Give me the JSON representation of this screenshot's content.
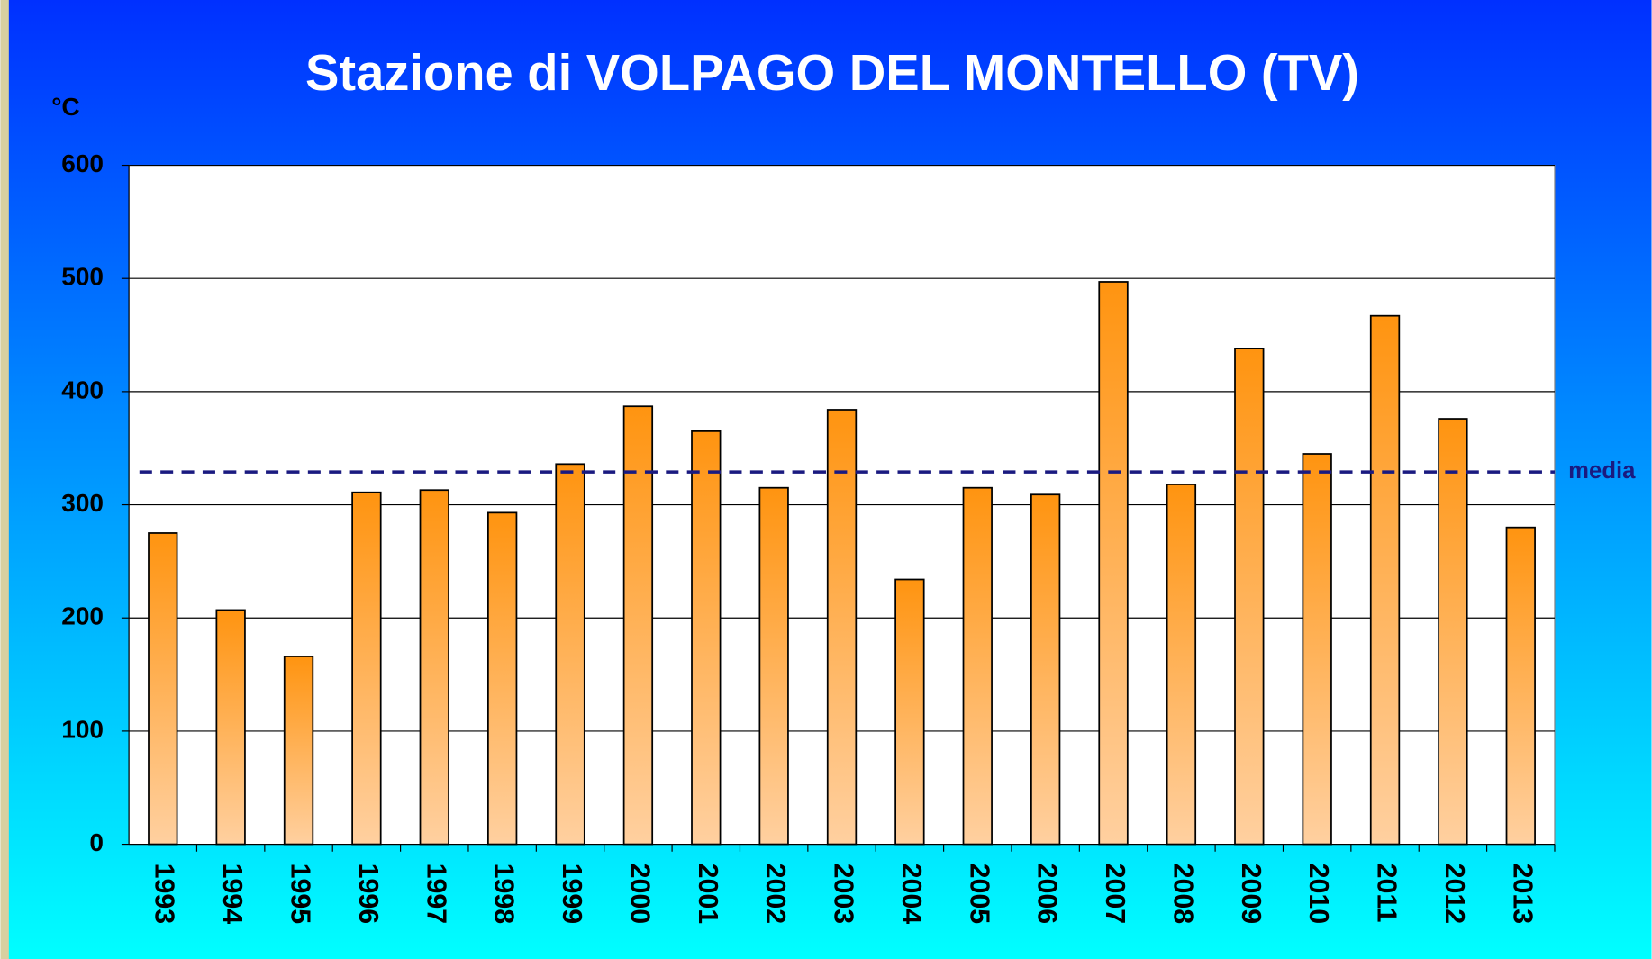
{
  "chart_data": {
    "type": "bar",
    "title": "Stazione di VOLPAGO DEL MONTELLO (TV)",
    "y_label": "°C",
    "categories": [
      "1993",
      "1994",
      "1995",
      "1996",
      "1997",
      "1998",
      "1999",
      "2000",
      "2001",
      "2002",
      "2003",
      "2004",
      "2005",
      "2006",
      "2007",
      "2008",
      "2009",
      "2010",
      "2011",
      "2012",
      "2013"
    ],
    "values": [
      275,
      207,
      166,
      311,
      313,
      293,
      336,
      387,
      365,
      315,
      384,
      234,
      315,
      309,
      497,
      318,
      438,
      345,
      467,
      376,
      280
    ],
    "color": "#ff9900",
    "ylim": [
      0,
      600
    ],
    "yticks": [
      0,
      100,
      200,
      300,
      400,
      500,
      600
    ],
    "grid": true,
    "mean_line": {
      "value": 329,
      "label": "media",
      "color": "#1a1a80"
    }
  }
}
